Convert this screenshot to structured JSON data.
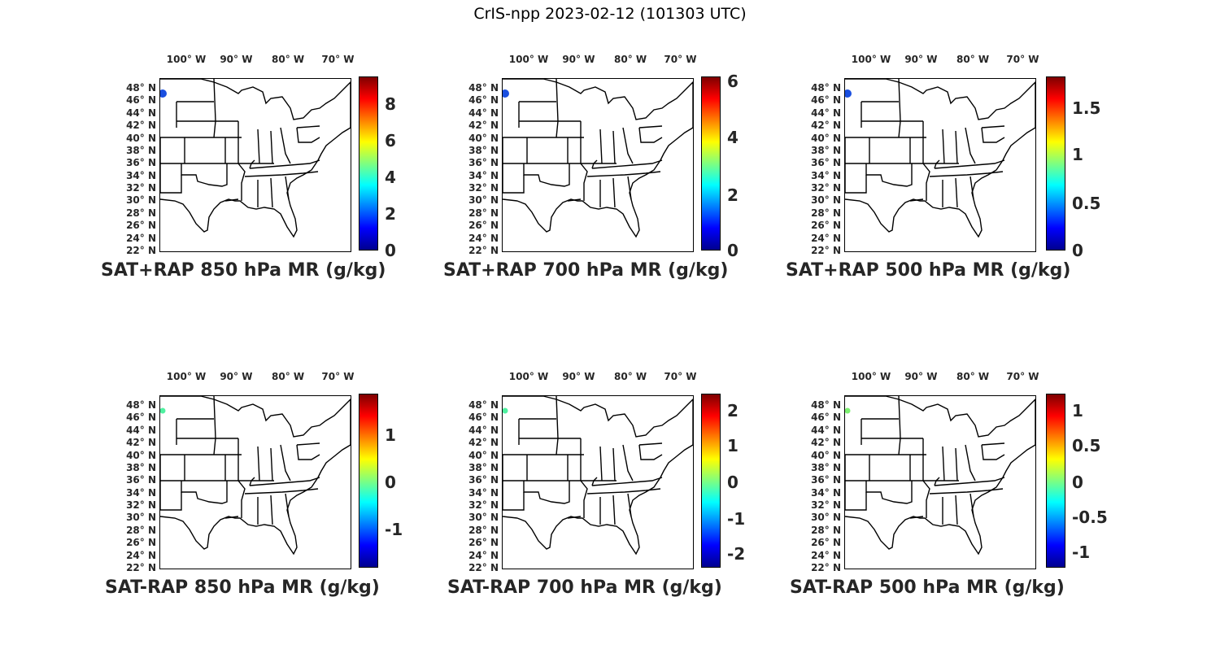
{
  "title": "CrIS-npp 2023-02-12 (101303 UTC)",
  "lon_ticks": [
    "100° W",
    "90° W",
    "80° W",
    "70° W"
  ],
  "lat_ticks": [
    "48° N",
    "46° N",
    "44° N",
    "42° N",
    "40° N",
    "38° N",
    "36° N",
    "34° N",
    "32° N",
    "30° N",
    "28° N",
    "26° N",
    "24° N",
    "22° N"
  ],
  "panels": [
    {
      "caption": "SAT+RAP 850 hPa MR (g/kg)",
      "colorbar_ticks": [
        "8",
        "6",
        "4",
        "2",
        "0"
      ],
      "marker_color": "#1a4fe0"
    },
    {
      "caption": "SAT+RAP 700 hPa MR (g/kg)",
      "colorbar_ticks": [
        "6",
        "4",
        "2",
        "0"
      ],
      "marker_color": "#1a4fe0"
    },
    {
      "caption": "SAT+RAP 500 hPa MR (g/kg)",
      "colorbar_ticks": [
        "1.5",
        "1",
        "0.5",
        "0"
      ],
      "marker_color": "#1a4fe0"
    },
    {
      "caption": "SAT-RAP 850 hPa MR (g/kg)",
      "colorbar_ticks": [
        "1",
        "0",
        "-1"
      ],
      "marker_color": "#4ff0a0"
    },
    {
      "caption": "SAT-RAP 700 hPa MR (g/kg)",
      "colorbar_ticks": [
        "2",
        "1",
        "0",
        "-1",
        "-2"
      ],
      "marker_color": "#4ff0a0"
    },
    {
      "caption": "SAT-RAP 500 hPa MR (g/kg)",
      "colorbar_ticks": [
        "1",
        "0.5",
        "0",
        "-0.5",
        "-1"
      ],
      "marker_color": "#7cf070"
    }
  ]
}
